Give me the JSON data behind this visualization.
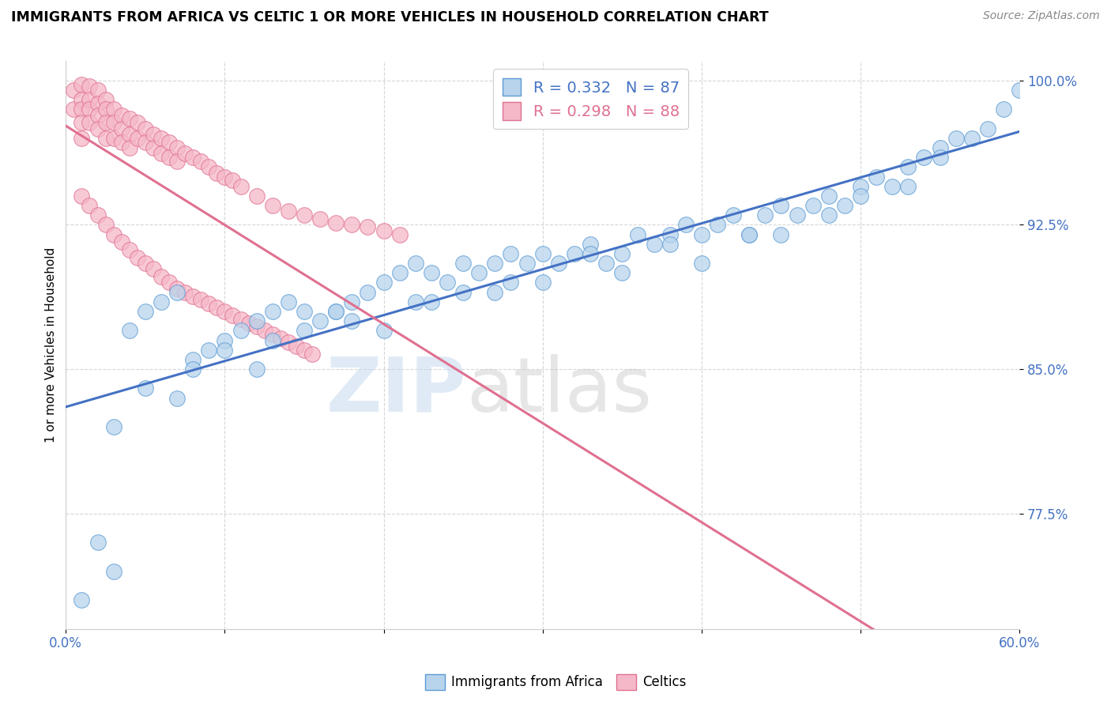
{
  "title": "IMMIGRANTS FROM AFRICA VS CELTIC 1 OR MORE VEHICLES IN HOUSEHOLD CORRELATION CHART",
  "source_text": "Source: ZipAtlas.com",
  "ylabel": "1 or more Vehicles in Household",
  "xlim": [
    0.0,
    0.6
  ],
  "ylim": [
    0.715,
    1.01
  ],
  "x_ticks": [
    0.0,
    0.1,
    0.2,
    0.3,
    0.4,
    0.5,
    0.6
  ],
  "x_tick_labels": [
    "0.0%",
    "",
    "",
    "",
    "",
    "",
    "60.0%"
  ],
  "y_ticks": [
    0.775,
    0.85,
    0.925,
    1.0
  ],
  "y_tick_labels": [
    "77.5%",
    "85.0%",
    "92.5%",
    "100.0%"
  ],
  "r_blue": 0.332,
  "n_blue": 87,
  "r_pink": 0.298,
  "n_pink": 88,
  "blue_color": "#b8d4ec",
  "pink_color": "#f5b8c8",
  "blue_edge_color": "#5b9bd5",
  "pink_edge_color": "#e07090",
  "blue_line_color": "#4472c4",
  "pink_line_color": "#e07090",
  "legend_label_blue": "Immigrants from Africa",
  "legend_label_pink": "Celtics",
  "watermark": "ZIPatlas",
  "blue_x": [
    0.01,
    0.02,
    0.03,
    0.04,
    0.05,
    0.06,
    0.07,
    0.08,
    0.09,
    0.1,
    0.11,
    0.12,
    0.13,
    0.14,
    0.15,
    0.16,
    0.17,
    0.18,
    0.19,
    0.2,
    0.21,
    0.22,
    0.23,
    0.24,
    0.25,
    0.26,
    0.27,
    0.28,
    0.29,
    0.3,
    0.31,
    0.32,
    0.33,
    0.34,
    0.35,
    0.36,
    0.37,
    0.38,
    0.39,
    0.4,
    0.41,
    0.42,
    0.43,
    0.44,
    0.45,
    0.46,
    0.47,
    0.48,
    0.49,
    0.5,
    0.51,
    0.52,
    0.53,
    0.54,
    0.55,
    0.56,
    0.57,
    0.58,
    0.59,
    0.6,
    0.05,
    0.1,
    0.15,
    0.2,
    0.25,
    0.3,
    0.35,
    0.4,
    0.45,
    0.5,
    0.55,
    0.08,
    0.13,
    0.18,
    0.23,
    0.28,
    0.33,
    0.38,
    0.43,
    0.48,
    0.53,
    0.03,
    0.07,
    0.12,
    0.17,
    0.22,
    0.27
  ],
  "blue_y": [
    0.73,
    0.76,
    0.745,
    0.87,
    0.88,
    0.885,
    0.89,
    0.855,
    0.86,
    0.865,
    0.87,
    0.875,
    0.88,
    0.885,
    0.87,
    0.875,
    0.88,
    0.885,
    0.89,
    0.895,
    0.9,
    0.905,
    0.9,
    0.895,
    0.905,
    0.9,
    0.905,
    0.91,
    0.905,
    0.91,
    0.905,
    0.91,
    0.915,
    0.905,
    0.91,
    0.92,
    0.915,
    0.92,
    0.925,
    0.92,
    0.925,
    0.93,
    0.92,
    0.93,
    0.935,
    0.93,
    0.935,
    0.94,
    0.935,
    0.945,
    0.95,
    0.945,
    0.955,
    0.96,
    0.965,
    0.97,
    0.97,
    0.975,
    0.985,
    0.995,
    0.84,
    0.86,
    0.88,
    0.87,
    0.89,
    0.895,
    0.9,
    0.905,
    0.92,
    0.94,
    0.96,
    0.85,
    0.865,
    0.875,
    0.885,
    0.895,
    0.91,
    0.915,
    0.92,
    0.93,
    0.945,
    0.82,
    0.835,
    0.85,
    0.88,
    0.885,
    0.89
  ],
  "pink_x": [
    0.005,
    0.005,
    0.01,
    0.01,
    0.01,
    0.01,
    0.01,
    0.015,
    0.015,
    0.015,
    0.015,
    0.02,
    0.02,
    0.02,
    0.02,
    0.025,
    0.025,
    0.025,
    0.025,
    0.03,
    0.03,
    0.03,
    0.035,
    0.035,
    0.035,
    0.04,
    0.04,
    0.04,
    0.045,
    0.045,
    0.05,
    0.05,
    0.055,
    0.055,
    0.06,
    0.06,
    0.065,
    0.065,
    0.07,
    0.07,
    0.075,
    0.08,
    0.085,
    0.09,
    0.095,
    0.1,
    0.105,
    0.11,
    0.12,
    0.13,
    0.14,
    0.15,
    0.16,
    0.17,
    0.18,
    0.19,
    0.2,
    0.21,
    0.01,
    0.015,
    0.02,
    0.025,
    0.03,
    0.035,
    0.04,
    0.045,
    0.05,
    0.055,
    0.06,
    0.065,
    0.07,
    0.075,
    0.08,
    0.085,
    0.09,
    0.095,
    0.1,
    0.105,
    0.11,
    0.115,
    0.12,
    0.125,
    0.13,
    0.135,
    0.14,
    0.145,
    0.15,
    0.155
  ],
  "pink_y": [
    0.995,
    0.985,
    0.998,
    0.99,
    0.985,
    0.978,
    0.97,
    0.997,
    0.99,
    0.985,
    0.978,
    0.995,
    0.988,
    0.982,
    0.975,
    0.99,
    0.985,
    0.978,
    0.97,
    0.985,
    0.978,
    0.97,
    0.982,
    0.975,
    0.968,
    0.98,
    0.972,
    0.965,
    0.978,
    0.97,
    0.975,
    0.968,
    0.972,
    0.965,
    0.97,
    0.962,
    0.968,
    0.96,
    0.965,
    0.958,
    0.962,
    0.96,
    0.958,
    0.955,
    0.952,
    0.95,
    0.948,
    0.945,
    0.94,
    0.935,
    0.932,
    0.93,
    0.928,
    0.926,
    0.925,
    0.924,
    0.922,
    0.92,
    0.94,
    0.935,
    0.93,
    0.925,
    0.92,
    0.916,
    0.912,
    0.908,
    0.905,
    0.902,
    0.898,
    0.895,
    0.892,
    0.89,
    0.888,
    0.886,
    0.884,
    0.882,
    0.88,
    0.878,
    0.876,
    0.874,
    0.872,
    0.87,
    0.868,
    0.866,
    0.864,
    0.862,
    0.86,
    0.858
  ]
}
